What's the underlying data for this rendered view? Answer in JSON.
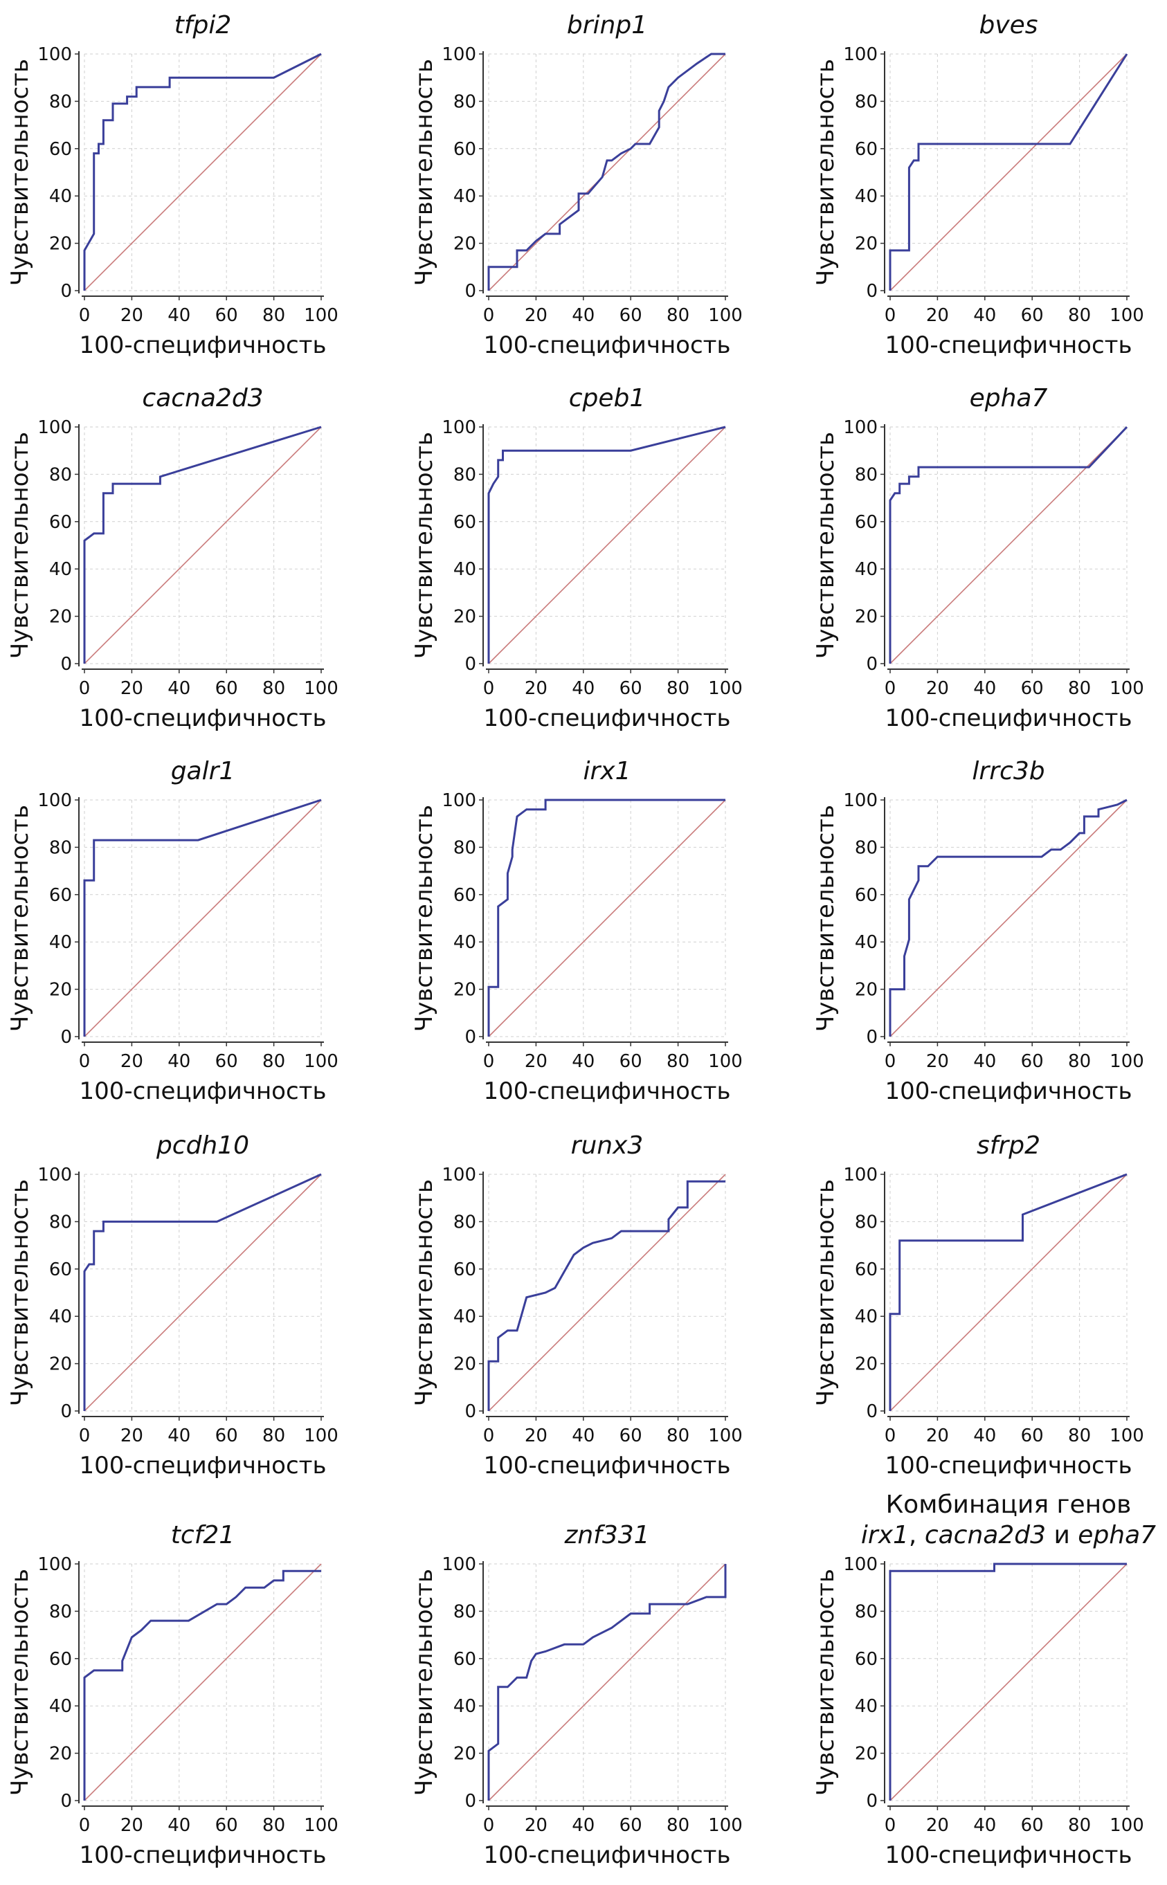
{
  "colors": {
    "roc": "#3a3f9a",
    "diagonal": "#c97a7a",
    "grid": "#cfcfcf",
    "axis": "#333333"
  },
  "chart_data": [
    {
      "type": "line",
      "title": "tfpi2",
      "xlabel": "100-специфичность",
      "ylabel": "Чувствительность",
      "xlim": [
        0,
        100
      ],
      "ylim": [
        0,
        100
      ],
      "xticks": [
        "0",
        "20",
        "40",
        "60",
        "80",
        "100"
      ],
      "yticks": [
        "0",
        "20",
        "40",
        "60",
        "80",
        "100"
      ],
      "grid": true,
      "series": [
        {
          "x": [
            0,
            0,
            0,
            4,
            4,
            6,
            6,
            8,
            8,
            12,
            12,
            18,
            18,
            22,
            22,
            26,
            26,
            36,
            36,
            80,
            80,
            100
          ],
          "y": [
            0,
            17,
            17,
            24,
            58,
            58,
            62,
            62,
            72,
            72,
            79,
            79,
            82,
            82,
            86,
            86,
            86,
            86,
            90,
            90,
            90,
            100
          ]
        }
      ]
    },
    {
      "type": "line",
      "title": "brinp1",
      "xlabel": "100-специфичность",
      "ylabel": "Чувствительность",
      "xlim": [
        0,
        100
      ],
      "ylim": [
        0,
        100
      ],
      "xticks": [
        "0",
        "20",
        "40",
        "60",
        "80",
        "100"
      ],
      "yticks": [
        "0",
        "20",
        "40",
        "60",
        "80",
        "100"
      ],
      "grid": true,
      "series": [
        {
          "x": [
            0,
            0,
            12,
            12,
            16,
            20,
            24,
            30,
            30,
            38,
            38,
            42,
            48,
            50,
            52,
            56,
            60,
            62,
            68,
            72,
            72,
            74,
            76,
            80,
            88,
            94,
            96,
            100
          ],
          "y": [
            0,
            10,
            10,
            17,
            17,
            21,
            24,
            24,
            28,
            34,
            41,
            41,
            48,
            55,
            55,
            58,
            60,
            62,
            62,
            69,
            76,
            80,
            86,
            90,
            96,
            100,
            100,
            100
          ]
        }
      ]
    },
    {
      "type": "line",
      "title": "bves",
      "xlabel": "100-специфичность",
      "ylabel": "Чувствительность",
      "xlim": [
        0,
        100
      ],
      "ylim": [
        0,
        100
      ],
      "xticks": [
        "0",
        "20",
        "40",
        "60",
        "80",
        "100"
      ],
      "yticks": [
        "0",
        "20",
        "40",
        "60",
        "80",
        "100"
      ],
      "grid": true,
      "series": [
        {
          "x": [
            0,
            0,
            8,
            8,
            10,
            12,
            12,
            76,
            100
          ],
          "y": [
            0,
            17,
            17,
            52,
            55,
            55,
            62,
            62,
            100
          ]
        }
      ]
    },
    {
      "type": "line",
      "title": "cacna2d3",
      "xlabel": "100-специфичность",
      "ylabel": "Чувствительность",
      "xlim": [
        0,
        100
      ],
      "ylim": [
        0,
        100
      ],
      "xticks": [
        "0",
        "20",
        "40",
        "60",
        "80",
        "100"
      ],
      "yticks": [
        "0",
        "20",
        "40",
        "60",
        "80",
        "100"
      ],
      "grid": true,
      "series": [
        {
          "x": [
            0,
            0,
            4,
            4,
            8,
            8,
            12,
            12,
            32,
            32,
            100
          ],
          "y": [
            0,
            52,
            55,
            55,
            55,
            72,
            72,
            76,
            76,
            79,
            100
          ]
        }
      ]
    },
    {
      "type": "line",
      "title": "cpeb1",
      "xlabel": "100-специфичность",
      "ylabel": "Чувствительность",
      "xlim": [
        0,
        100
      ],
      "ylim": [
        0,
        100
      ],
      "xticks": [
        "0",
        "20",
        "40",
        "60",
        "80",
        "100"
      ],
      "yticks": [
        "0",
        "20",
        "40",
        "60",
        "80",
        "100"
      ],
      "grid": true,
      "series": [
        {
          "x": [
            0,
            0,
            2,
            4,
            4,
            6,
            6,
            60,
            100
          ],
          "y": [
            0,
            72,
            76,
            79,
            86,
            86,
            90,
            90,
            100
          ]
        }
      ]
    },
    {
      "type": "line",
      "title": "epha7",
      "xlabel": "100-специфичность",
      "ylabel": "Чувствительность",
      "xlim": [
        0,
        100
      ],
      "ylim": [
        0,
        100
      ],
      "xticks": [
        "0",
        "20",
        "40",
        "60",
        "80",
        "100"
      ],
      "yticks": [
        "0",
        "20",
        "40",
        "60",
        "80",
        "100"
      ],
      "grid": true,
      "series": [
        {
          "x": [
            0,
            0,
            2,
            4,
            4,
            8,
            8,
            12,
            12,
            84,
            100
          ],
          "y": [
            0,
            69,
            72,
            72,
            76,
            76,
            79,
            79,
            83,
            83,
            100
          ]
        }
      ]
    },
    {
      "type": "line",
      "title": "galr1",
      "xlabel": "100-специфичность",
      "ylabel": "Чувствительность",
      "xlim": [
        0,
        100
      ],
      "ylim": [
        0,
        100
      ],
      "xticks": [
        "0",
        "20",
        "40",
        "60",
        "80",
        "100"
      ],
      "yticks": [
        "0",
        "20",
        "40",
        "60",
        "80",
        "100"
      ],
      "grid": true,
      "series": [
        {
          "x": [
            0,
            0,
            4,
            4,
            48,
            100
          ],
          "y": [
            0,
            66,
            66,
            83,
            83,
            100
          ]
        }
      ]
    },
    {
      "type": "line",
      "title": "irx1",
      "xlabel": "100-специфичность",
      "ylabel": "Чувствительность",
      "xlim": [
        0,
        100
      ],
      "ylim": [
        0,
        100
      ],
      "xticks": [
        "0",
        "20",
        "40",
        "60",
        "80",
        "100"
      ],
      "yticks": [
        "0",
        "20",
        "40",
        "60",
        "80",
        "100"
      ],
      "grid": true,
      "series": [
        {
          "x": [
            0,
            0,
            4,
            4,
            8,
            8,
            10,
            10,
            12,
            12,
            16,
            16,
            24,
            24,
            100
          ],
          "y": [
            0,
            21,
            21,
            55,
            58,
            69,
            76,
            79,
            93,
            93,
            96,
            96,
            96,
            100,
            100
          ]
        }
      ]
    },
    {
      "type": "line",
      "title": "lrrc3b",
      "xlabel": "100-специфичность",
      "ylabel": "Чувствительность",
      "xlim": [
        0,
        100
      ],
      "ylim": [
        0,
        100
      ],
      "xticks": [
        "0",
        "20",
        "40",
        "60",
        "80",
        "100"
      ],
      "yticks": [
        "0",
        "20",
        "40",
        "60",
        "80",
        "100"
      ],
      "grid": true,
      "series": [
        {
          "x": [
            0,
            0,
            4,
            6,
            6,
            8,
            8,
            12,
            12,
            16,
            20,
            64,
            68,
            72,
            76,
            80,
            82,
            82,
            86,
            88,
            88,
            92,
            96,
            100
          ],
          "y": [
            0,
            20,
            20,
            20,
            34,
            41,
            58,
            66,
            72,
            72,
            76,
            76,
            79,
            79,
            82,
            86,
            86,
            93,
            93,
            93,
            96,
            97,
            98,
            100
          ]
        }
      ]
    },
    {
      "type": "line",
      "title": "pcdh10",
      "xlabel": "100-специфичность",
      "ylabel": "Чувствительность",
      "xlim": [
        0,
        100
      ],
      "ylim": [
        0,
        100
      ],
      "xticks": [
        "0",
        "20",
        "40",
        "60",
        "80",
        "100"
      ],
      "yticks": [
        "0",
        "20",
        "40",
        "60",
        "80",
        "100"
      ],
      "grid": true,
      "series": [
        {
          "x": [
            0,
            0,
            2,
            4,
            4,
            8,
            8,
            56,
            100
          ],
          "y": [
            0,
            59,
            62,
            62,
            76,
            76,
            80,
            80,
            100
          ]
        }
      ]
    },
    {
      "type": "line",
      "title": "runx3",
      "xlabel": "100-специфичность",
      "ylabel": "Чувствительность",
      "xlim": [
        0,
        100
      ],
      "ylim": [
        0,
        100
      ],
      "xticks": [
        "0",
        "20",
        "40",
        "60",
        "80",
        "100"
      ],
      "yticks": [
        "0",
        "20",
        "40",
        "60",
        "80",
        "100"
      ],
      "grid": true,
      "series": [
        {
          "x": [
            0,
            0,
            4,
            4,
            8,
            12,
            14,
            16,
            16,
            24,
            28,
            32,
            36,
            40,
            44,
            48,
            52,
            56,
            60,
            76,
            76,
            80,
            84,
            84,
            100
          ],
          "y": [
            0,
            21,
            21,
            31,
            34,
            34,
            41,
            48,
            48,
            50,
            52,
            59,
            66,
            69,
            71,
            72,
            73,
            76,
            76,
            76,
            81,
            86,
            86,
            97,
            97
          ]
        }
      ]
    },
    {
      "type": "line",
      "title": "sfrp2",
      "xlabel": "100-специфичность",
      "ylabel": "Чувствительность",
      "xlim": [
        0,
        100
      ],
      "ylim": [
        0,
        100
      ],
      "xticks": [
        "0",
        "20",
        "40",
        "60",
        "80",
        "100"
      ],
      "yticks": [
        "0",
        "20",
        "40",
        "60",
        "80",
        "100"
      ],
      "grid": true,
      "series": [
        {
          "x": [
            0,
            0,
            4,
            4,
            56,
            56,
            100
          ],
          "y": [
            0,
            41,
            41,
            72,
            72,
            83,
            100
          ]
        }
      ]
    },
    {
      "type": "line",
      "title": "tcf21",
      "xlabel": "100-специфичность",
      "ylabel": "Чувствительность",
      "xlim": [
        0,
        100
      ],
      "ylim": [
        0,
        100
      ],
      "xticks": [
        "0",
        "20",
        "40",
        "60",
        "80",
        "100"
      ],
      "yticks": [
        "0",
        "20",
        "40",
        "60",
        "80",
        "100"
      ],
      "grid": true,
      "series": [
        {
          "x": [
            0,
            0,
            4,
            4,
            16,
            16,
            20,
            24,
            28,
            44,
            56,
            60,
            64,
            68,
            72,
            76,
            80,
            80,
            84,
            84,
            100
          ],
          "y": [
            0,
            52,
            55,
            55,
            55,
            59,
            69,
            72,
            76,
            76,
            83,
            83,
            86,
            90,
            90,
            90,
            93,
            93,
            93,
            97,
            97
          ]
        }
      ]
    },
    {
      "type": "line",
      "title": "znf331",
      "xlabel": "100-специфичность",
      "ylabel": "Чувствительность",
      "xlim": [
        0,
        100
      ],
      "ylim": [
        0,
        100
      ],
      "xticks": [
        "0",
        "20",
        "40",
        "60",
        "80",
        "100"
      ],
      "yticks": [
        "0",
        "20",
        "40",
        "60",
        "80",
        "100"
      ],
      "grid": true,
      "series": [
        {
          "x": [
            0,
            0,
            4,
            4,
            8,
            12,
            16,
            18,
            20,
            24,
            32,
            40,
            44,
            52,
            56,
            60,
            64,
            68,
            68,
            80,
            84,
            92,
            96,
            100,
            100
          ],
          "y": [
            0,
            21,
            24,
            48,
            48,
            52,
            52,
            59,
            62,
            63,
            66,
            66,
            69,
            73,
            76,
            79,
            79,
            79,
            83,
            83,
            83,
            86,
            86,
            86,
            100
          ]
        }
      ]
    },
    {
      "type": "line",
      "title_line1": "Комбинация генов",
      "title_genes": [
        "irx1",
        "cacna2d3",
        "epha7"
      ],
      "title_sep": ",",
      "title_and": "и",
      "xlabel": "100-специфичность",
      "ylabel": "Чувствительность",
      "xlim": [
        0,
        100
      ],
      "ylim": [
        0,
        100
      ],
      "xticks": [
        "0",
        "20",
        "40",
        "60",
        "80",
        "100"
      ],
      "yticks": [
        "0",
        "20",
        "40",
        "60",
        "80",
        "100"
      ],
      "grid": true,
      "series": [
        {
          "x": [
            0,
            0,
            44,
            44,
            100
          ],
          "y": [
            0,
            97,
            97,
            100,
            100
          ]
        }
      ]
    }
  ]
}
